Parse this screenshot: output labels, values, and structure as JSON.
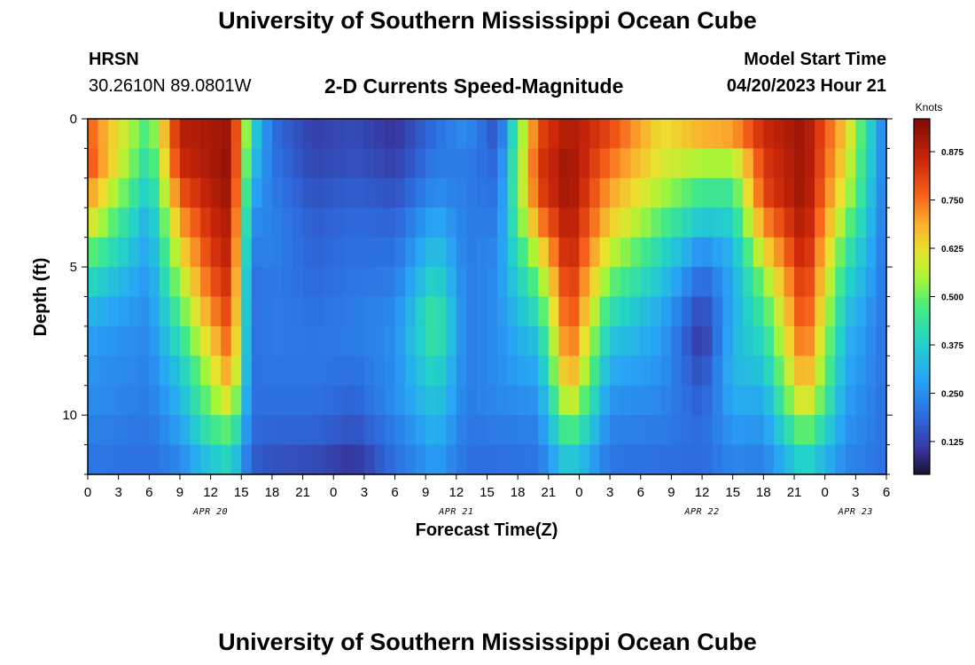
{
  "header": {
    "title": "University of Southern Mississippi Ocean Cube",
    "station": "HRSN",
    "coordinates": "30.2610N  89.0801W",
    "subtitle": "2-D Currents Speed-Magnitude",
    "model_start_label": "Model Start Time",
    "model_start_value": "04/20/2023 Hour 21"
  },
  "footer": {
    "title": "University of Southern Mississippi Ocean Cube"
  },
  "chart_data": {
    "type": "heatmap",
    "xlabel": "Forecast Time(Z)",
    "ylabel": "Depth (ft)",
    "x_range_hours": [
      0,
      78
    ],
    "y_range_ft": [
      0,
      12
    ],
    "x_ticks": [
      {
        "h": 0,
        "label": "0"
      },
      {
        "h": 3,
        "label": "3"
      },
      {
        "h": 6,
        "label": "6"
      },
      {
        "h": 9,
        "label": "9"
      },
      {
        "h": 12,
        "label": "12"
      },
      {
        "h": 15,
        "label": "15"
      },
      {
        "h": 18,
        "label": "18"
      },
      {
        "h": 21,
        "label": "21"
      },
      {
        "h": 24,
        "label": "0"
      },
      {
        "h": 27,
        "label": "3"
      },
      {
        "h": 30,
        "label": "6"
      },
      {
        "h": 33,
        "label": "9"
      },
      {
        "h": 36,
        "label": "12"
      },
      {
        "h": 39,
        "label": "15"
      },
      {
        "h": 42,
        "label": "18"
      },
      {
        "h": 45,
        "label": "21"
      },
      {
        "h": 48,
        "label": "0"
      },
      {
        "h": 51,
        "label": "3"
      },
      {
        "h": 54,
        "label": "6"
      },
      {
        "h": 57,
        "label": "9"
      },
      {
        "h": 60,
        "label": "12"
      },
      {
        "h": 63,
        "label": "15"
      },
      {
        "h": 66,
        "label": "18"
      },
      {
        "h": 69,
        "label": "21"
      },
      {
        "h": 72,
        "label": "0"
      },
      {
        "h": 75,
        "label": "3"
      },
      {
        "h": 78,
        "label": "6"
      }
    ],
    "date_labels": [
      {
        "h": 12,
        "label": "APR 20"
      },
      {
        "h": 36,
        "label": "APR 21"
      },
      {
        "h": 60,
        "label": "APR 22"
      },
      {
        "h": 75,
        "label": "APR 23"
      }
    ],
    "y_ticks": [
      {
        "v": 0,
        "label": "0"
      },
      {
        "v": 5,
        "label": "5"
      },
      {
        "v": 10,
        "label": "10"
      }
    ],
    "colorbar": {
      "title": "Knots",
      "range": [
        0.04,
        0.96
      ],
      "ticks": [
        {
          "v": 0.875,
          "label": "0.875"
        },
        {
          "v": 0.75,
          "label": "0.750"
        },
        {
          "v": 0.625,
          "label": "0.625"
        },
        {
          "v": 0.5,
          "label": "0.500"
        },
        {
          "v": 0.375,
          "label": "0.375"
        },
        {
          "v": 0.25,
          "label": "0.250"
        },
        {
          "v": 0.125,
          "label": "0.125"
        }
      ]
    },
    "speed_knots_profile": {
      "depths_ft": [
        0.5,
        1.5,
        2.5,
        3.5,
        4.5,
        5.5,
        6.5,
        7.5,
        8.5,
        9.5,
        10.5,
        11.5
      ],
      "hours": [
        0,
        6,
        9,
        12,
        14,
        16,
        18,
        22,
        26,
        30,
        34,
        37,
        40,
        44,
        47,
        51,
        56,
        60,
        63,
        66,
        70,
        74,
        78
      ],
      "values": [
        [
          0.78,
          0.45,
          0.88,
          0.9,
          0.92,
          0.4,
          0.2,
          0.12,
          0.14,
          0.1,
          0.2,
          0.25,
          0.15,
          0.8,
          0.9,
          0.8,
          0.62,
          0.68,
          0.7,
          0.85,
          0.92,
          0.65,
          0.2
        ],
        [
          0.8,
          0.4,
          0.85,
          0.9,
          0.93,
          0.35,
          0.21,
          0.13,
          0.15,
          0.12,
          0.22,
          0.22,
          0.18,
          0.82,
          0.92,
          0.75,
          0.6,
          0.55,
          0.55,
          0.82,
          0.92,
          0.62,
          0.2
        ],
        [
          0.72,
          0.35,
          0.78,
          0.88,
          0.92,
          0.3,
          0.22,
          0.15,
          0.17,
          0.15,
          0.25,
          0.22,
          0.2,
          0.8,
          0.92,
          0.7,
          0.55,
          0.45,
          0.45,
          0.8,
          0.92,
          0.58,
          0.2
        ],
        [
          0.62,
          0.3,
          0.7,
          0.85,
          0.9,
          0.25,
          0.23,
          0.17,
          0.19,
          0.18,
          0.3,
          0.22,
          0.22,
          0.72,
          0.9,
          0.65,
          0.48,
          0.35,
          0.38,
          0.72,
          0.9,
          0.52,
          0.2
        ],
        [
          0.5,
          0.28,
          0.62,
          0.82,
          0.88,
          0.22,
          0.23,
          0.18,
          0.2,
          0.2,
          0.35,
          0.22,
          0.24,
          0.6,
          0.88,
          0.58,
          0.4,
          0.25,
          0.32,
          0.62,
          0.88,
          0.45,
          0.2
        ],
        [
          0.4,
          0.26,
          0.55,
          0.78,
          0.85,
          0.2,
          0.22,
          0.19,
          0.21,
          0.22,
          0.4,
          0.22,
          0.25,
          0.5,
          0.85,
          0.5,
          0.35,
          0.18,
          0.3,
          0.52,
          0.85,
          0.4,
          0.2
        ],
        [
          0.32,
          0.25,
          0.48,
          0.72,
          0.82,
          0.2,
          0.22,
          0.2,
          0.22,
          0.24,
          0.45,
          0.22,
          0.25,
          0.42,
          0.82,
          0.42,
          0.3,
          0.13,
          0.3,
          0.45,
          0.82,
          0.35,
          0.2
        ],
        [
          0.28,
          0.24,
          0.42,
          0.65,
          0.78,
          0.2,
          0.22,
          0.21,
          0.22,
          0.25,
          0.45,
          0.22,
          0.25,
          0.35,
          0.78,
          0.35,
          0.28,
          0.1,
          0.32,
          0.4,
          0.78,
          0.32,
          0.2
        ],
        [
          0.26,
          0.23,
          0.36,
          0.58,
          0.72,
          0.2,
          0.21,
          0.21,
          0.2,
          0.25,
          0.4,
          0.22,
          0.25,
          0.3,
          0.72,
          0.3,
          0.26,
          0.14,
          0.32,
          0.35,
          0.72,
          0.3,
          0.2
        ],
        [
          0.25,
          0.22,
          0.32,
          0.52,
          0.62,
          0.2,
          0.2,
          0.2,
          0.18,
          0.25,
          0.36,
          0.22,
          0.24,
          0.26,
          0.62,
          0.26,
          0.24,
          0.17,
          0.3,
          0.3,
          0.64,
          0.28,
          0.2
        ],
        [
          0.23,
          0.21,
          0.28,
          0.45,
          0.5,
          0.19,
          0.18,
          0.18,
          0.15,
          0.22,
          0.32,
          0.21,
          0.22,
          0.23,
          0.5,
          0.23,
          0.22,
          0.19,
          0.27,
          0.26,
          0.52,
          0.26,
          0.2
        ],
        [
          0.21,
          0.2,
          0.24,
          0.36,
          0.4,
          0.17,
          0.15,
          0.14,
          0.1,
          0.2,
          0.28,
          0.2,
          0.2,
          0.21,
          0.38,
          0.21,
          0.2,
          0.19,
          0.24,
          0.23,
          0.4,
          0.24,
          0.2
        ]
      ]
    }
  }
}
